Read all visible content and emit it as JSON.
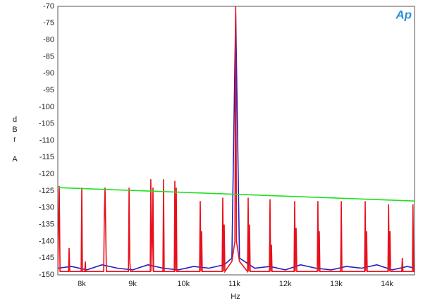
{
  "chart_data": {
    "type": "line",
    "logo": "Ap",
    "xlabel": "Hz",
    "ylabel": "dBr A",
    "xlim": [
      7530,
      14540
    ],
    "ylim": [
      -150,
      -70
    ],
    "xticks": [
      {
        "value": 8000,
        "label": "8k"
      },
      {
        "value": 9000,
        "label": "9k"
      },
      {
        "value": 10000,
        "label": "10k"
      },
      {
        "value": 11000,
        "label": "11k"
      },
      {
        "value": 12000,
        "label": "12k"
      },
      {
        "value": 13000,
        "label": "13k"
      },
      {
        "value": 14000,
        "label": "14k"
      }
    ],
    "yticks": [
      -150,
      -145,
      -140,
      -135,
      -130,
      -125,
      -120,
      -115,
      -110,
      -105,
      -100,
      -95,
      -90,
      -85,
      -80,
      -75,
      -70
    ],
    "grid": true,
    "series": [
      {
        "color": "#2020c0",
        "x": [
          7530,
          7800,
          8100,
          8400,
          8700,
          9000,
          9300,
          9600,
          9900,
          10200,
          10500,
          10800,
          10950,
          11025,
          11100,
          11400,
          11700,
          12000,
          12300,
          12600,
          12900,
          13200,
          13500,
          13800,
          14100,
          14400,
          14540
        ],
        "values": [
          -148,
          -147.5,
          -148.5,
          -147,
          -148,
          -148.5,
          -147,
          -148,
          -148.5,
          -147.5,
          -148,
          -147,
          -145,
          -72,
          -145,
          -148,
          -147.5,
          -148.5,
          -147,
          -148,
          -148.5,
          -147.5,
          -148,
          -147,
          -148.5,
          -147.5,
          -148
        ]
      },
      {
        "color": "#e8101c",
        "x": [
          7530,
          7558,
          7575,
          7740,
          7752,
          7765,
          7988,
          8001,
          8014,
          8060,
          8070,
          8080,
          8432,
          8444,
          8458,
          8485,
          8918,
          8930,
          8945,
          8958,
          9346,
          9358,
          9380,
          9400,
          9413,
          9596,
          9608,
          9621,
          9818,
          9830,
          9844,
          9857,
          9870,
          10316,
          10328,
          10342,
          10356,
          10369,
          10760,
          10772,
          10786,
          10800,
          10813,
          10950,
          11010,
          11025,
          11040,
          11100,
          11258,
          11270,
          11283,
          11297,
          11310,
          11688,
          11700,
          11713,
          11728,
          11740,
          12173,
          12185,
          12198,
          12213,
          12226,
          12628,
          12640,
          12653,
          12668,
          12681,
          13088,
          13100,
          13113,
          13558,
          13570,
          13583,
          13598,
          13611,
          14018,
          14030,
          14043,
          14058,
          14071,
          14288,
          14300,
          14313,
          14498,
          14510,
          14523,
          14540
        ],
        "values": [
          -149,
          -123.5,
          -149,
          -149,
          -142,
          -149,
          -149,
          -124,
          -149,
          -149,
          -146,
          -149,
          -149,
          -132,
          -124,
          -149,
          -149,
          -124,
          -146,
          -149,
          -149,
          -121.5,
          -149,
          -124,
          -149,
          -149,
          -121.5,
          -149,
          -149,
          -122,
          -149,
          -124,
          -149,
          -149,
          -128,
          -149,
          -137,
          -149,
          -149,
          -127,
          -149,
          -135,
          -149,
          -146,
          -140,
          -70,
          -140,
          -146,
          -149,
          -127,
          -149,
          -135,
          -149,
          -149,
          -127.5,
          -149,
          -141,
          -149,
          -149,
          -128,
          -149,
          -136,
          -149,
          -149,
          -128,
          -149,
          -137,
          -149,
          -149,
          -128,
          -149,
          -149,
          -128,
          -149,
          -137,
          -149,
          -149,
          -129,
          -149,
          -137,
          -149,
          -149,
          -145,
          -149,
          -149,
          -129,
          -149,
          -149
        ]
      },
      {
        "color": "#20e020",
        "x": [
          7530,
          14540
        ],
        "values": [
          -124,
          -128
        ]
      }
    ]
  }
}
